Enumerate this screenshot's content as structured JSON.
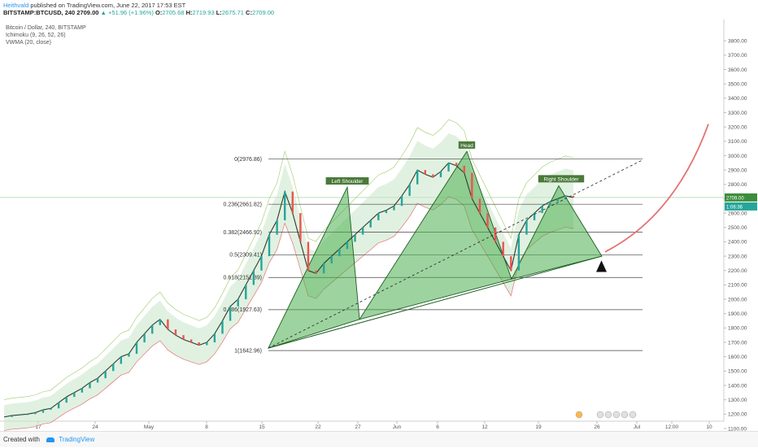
{
  "header": {
    "author": "Heithvald",
    "published": "published on TradingView.com, June 22, 2017 17:53 EST",
    "symbol": "BITSTAMP:BTCUSD, 240",
    "last": "2709.00",
    "change": "+51.96 (+1.96%)",
    "o_label": "O:",
    "o_value": "2705.68",
    "h_label": "H:",
    "h_value": "2719.93",
    "l_label": "L:",
    "l_value": "2675.71",
    "c_label": "C:",
    "c_value": "2709.00"
  },
  "legend": {
    "title": "Bitcoin / Dollar, 240, BITSTAMP",
    "ichimoku": "Ichimoku (9, 26, 52, 26)",
    "vwma": "VWMA (20, close)"
  },
  "footer": {
    "created_with": "Created with",
    "brand": "TradingView"
  },
  "colors": {
    "up": "#26a69a",
    "down": "#ef5350",
    "pattern_fill": "#4caf50",
    "pattern_stroke": "#1b5e20",
    "projection": "#e57373",
    "label_bg": "#4a7a3a"
  },
  "chart_data": {
    "type": "line",
    "title": "Bitcoin / Dollar, 240, BITSTAMP",
    "ylim": [
      1100,
      3900
    ],
    "y_ticks": [
      1100,
      1200,
      1300,
      1400,
      1500,
      1600,
      1700,
      1800,
      1900,
      2000,
      2100,
      2200,
      2300,
      2400,
      2500,
      2600,
      2700,
      2800,
      2900,
      3000,
      3100,
      3200,
      3300,
      3400,
      3500,
      3600,
      3700,
      3800
    ],
    "x_ticks": [
      "17",
      "24",
      "May",
      "8",
      "15",
      "22",
      "27",
      "Jun",
      "6",
      "12",
      "19",
      "26",
      "Jul",
      "12:00",
      "10"
    ],
    "price_badges": [
      {
        "value": 2709.0,
        "label": "2709.00"
      },
      {
        "value": 2646.36,
        "label": "1:06:36"
      }
    ],
    "fib_levels": [
      {
        "label": "0(2976.86)",
        "value": 2976.86
      },
      {
        "label": "0.236(2661.82)",
        "value": 2661.82
      },
      {
        "label": "0.382(2466.92)",
        "value": 2466.92
      },
      {
        "label": "0.5(2309.41)",
        "value": 2309.41
      },
      {
        "label": "0.618(2151.89)",
        "value": 2151.89
      },
      {
        "label": "0.786(1927.63)",
        "value": 1927.63
      },
      {
        "label": "1(1642.96)",
        "value": 1642.96
      }
    ],
    "pattern_labels": [
      "Left Shoulder",
      "Head",
      "Right Shoulder"
    ],
    "triangles": [
      [
        [
          "15",
          1660
        ],
        [
          "26",
          2780
        ],
        [
          "27",
          1860
        ]
      ],
      [
        [
          "27",
          1860
        ],
        [
          "10",
          3030
        ],
        [
          "15b",
          2140
        ]
      ],
      [
        [
          "15b",
          2140
        ],
        [
          "22",
          2790
        ],
        [
          "27p",
          2300
        ]
      ]
    ],
    "price_series": [
      1180,
      1190,
      1195,
      1200,
      1210,
      1230,
      1240,
      1280,
      1320,
      1350,
      1380,
      1420,
      1450,
      1500,
      1550,
      1600,
      1620,
      1700,
      1760,
      1820,
      1860,
      1790,
      1750,
      1720,
      1700,
      1680,
      1700,
      1760,
      1850,
      1950,
      2000,
      2100,
      2200,
      2300,
      2450,
      2550,
      2750,
      2600,
      2400,
      2200,
      2180,
      2250,
      2300,
      2350,
      2400,
      2450,
      2500,
      2550,
      2600,
      2620,
      2650,
      2720,
      2800,
      2900,
      2870,
      2850,
      2890,
      2950,
      2930,
      2880,
      2700,
      2600,
      2500,
      2400,
      2300,
      2200,
      2450,
      2550,
      2600,
      2650,
      2680,
      2700,
      2720,
      2709
    ]
  }
}
